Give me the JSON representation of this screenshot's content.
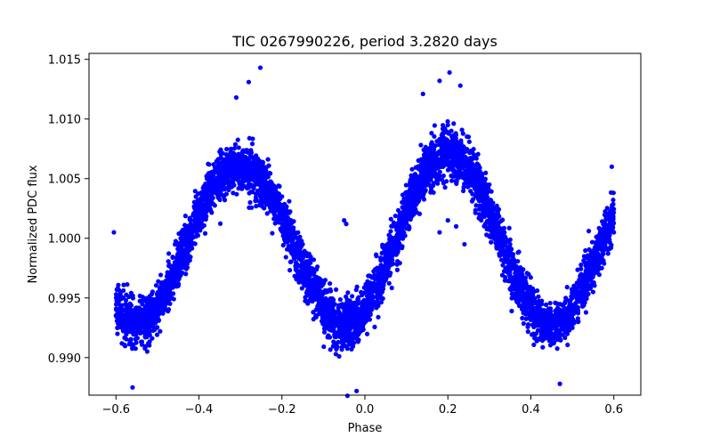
{
  "chart_data": {
    "type": "scatter",
    "title": "TIC 0267990226, period 3.2820 days",
    "xlabel": "Phase",
    "ylabel": "Normalized PDC flux",
    "xlim": [
      -0.665,
      0.665
    ],
    "ylim": [
      0.98685,
      1.0155
    ],
    "xticks": [
      -0.6,
      -0.4,
      -0.2,
      0.0,
      0.2,
      0.4,
      0.6
    ],
    "xtick_labels": [
      "−0.6",
      "−0.4",
      "−0.2",
      "0.0",
      "0.2",
      "0.4",
      "0.6"
    ],
    "yticks": [
      0.99,
      0.995,
      1.0,
      1.005,
      1.01,
      1.015
    ],
    "ytick_labels": [
      "0.990",
      "0.995",
      "1.000",
      "1.005",
      "1.010",
      "1.015"
    ],
    "marker_color": "#0000ff",
    "series": [
      {
        "name": "PDC flux",
        "model": {
          "phase_range": [
            -0.6,
            0.6
          ],
          "mean": 1.0,
          "amplitude": 0.0072,
          "cycles_per_unit_phase": 2.0,
          "peak_phase": 0.2,
          "peak1_phase": -0.3,
          "scatter": 0.0016
        },
        "points": [
          {
            "x": -0.6,
            "y": 0.9935
          },
          {
            "x": -0.55,
            "y": 0.9925
          },
          {
            "x": -0.5,
            "y": 0.9935
          },
          {
            "x": -0.45,
            "y": 0.9965
          },
          {
            "x": -0.4,
            "y": 1.0015
          },
          {
            "x": -0.35,
            "y": 1.0055
          },
          {
            "x": -0.3,
            "y": 1.0068
          },
          {
            "x": -0.25,
            "y": 1.0062
          },
          {
            "x": -0.2,
            "y": 1.0035
          },
          {
            "x": -0.15,
            "y": 0.9995
          },
          {
            "x": -0.1,
            "y": 0.9955
          },
          {
            "x": -0.05,
            "y": 0.9925
          },
          {
            "x": 0.0,
            "y": 0.9935
          },
          {
            "x": 0.05,
            "y": 0.9965
          },
          {
            "x": 0.1,
            "y": 1.0025
          },
          {
            "x": 0.15,
            "y": 1.0075
          },
          {
            "x": 0.2,
            "y": 1.0095
          },
          {
            "x": 0.25,
            "y": 1.0085
          },
          {
            "x": 0.3,
            "y": 1.0045
          },
          {
            "x": 0.35,
            "y": 0.9995
          },
          {
            "x": 0.4,
            "y": 0.9955
          },
          {
            "x": 0.45,
            "y": 0.9925
          },
          {
            "x": 0.5,
            "y": 0.9925
          },
          {
            "x": 0.55,
            "y": 0.9955
          },
          {
            "x": 0.6,
            "y": 1.0005
          },
          {
            "x": -0.252,
            "y": 1.0143
          },
          {
            "x": -0.28,
            "y": 1.0131
          },
          {
            "x": -0.31,
            "y": 1.0118
          },
          {
            "x": 0.204,
            "y": 1.0139
          },
          {
            "x": 0.18,
            "y": 1.0132
          },
          {
            "x": 0.23,
            "y": 1.0128
          },
          {
            "x": 0.14,
            "y": 1.0121
          },
          {
            "x": -0.042,
            "y": 0.9868
          },
          {
            "x": -0.02,
            "y": 0.9872
          },
          {
            "x": 0.47,
            "y": 0.9878
          },
          {
            "x": -0.56,
            "y": 0.9875
          },
          {
            "x": -0.05,
            "y": 1.0015
          },
          {
            "x": -0.045,
            "y": 1.0012
          },
          {
            "x": 0.595,
            "y": 1.006
          },
          {
            "x": -0.605,
            "y": 1.0005
          },
          {
            "x": 0.24,
            "y": 0.9995
          },
          {
            "x": 0.18,
            "y": 1.0005
          },
          {
            "x": 0.2,
            "y": 1.0015
          },
          {
            "x": 0.22,
            "y": 1.001
          }
        ]
      }
    ]
  }
}
